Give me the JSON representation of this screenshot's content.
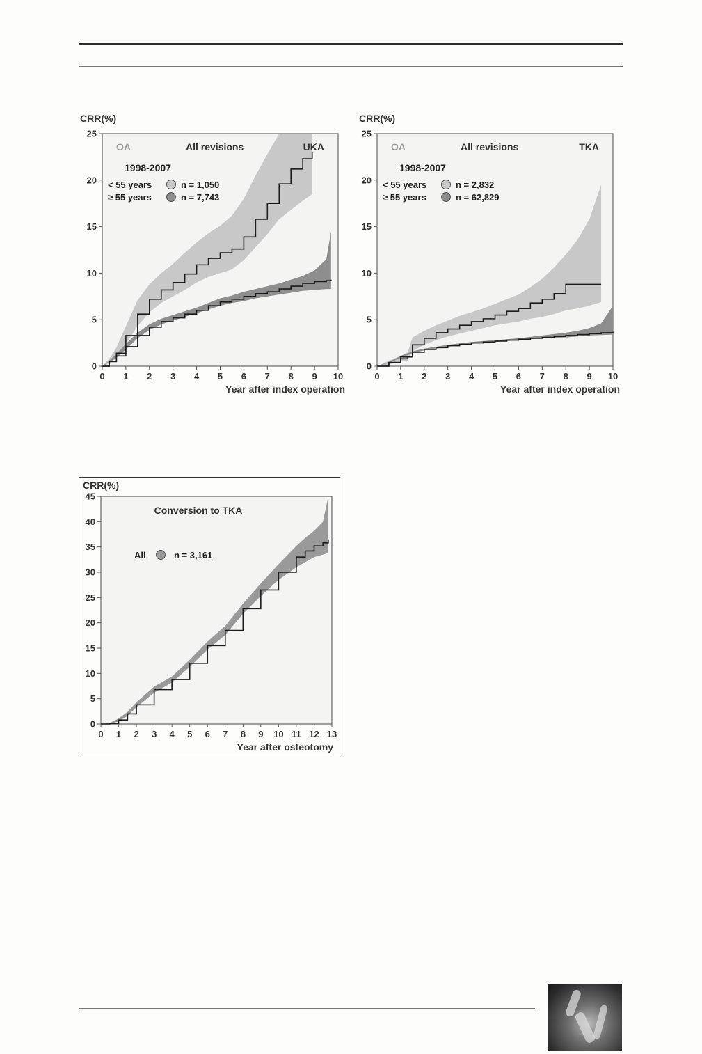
{
  "chart_data": [
    {
      "type": "line",
      "ylabel": "CRR(%)",
      "xlabel": "Year after index operation",
      "xlim": [
        0,
        10
      ],
      "ylim": [
        0,
        25
      ],
      "xticks": [
        0,
        1,
        2,
        3,
        4,
        5,
        6,
        7,
        8,
        9,
        10
      ],
      "yticks": [
        0,
        5,
        10,
        15,
        20,
        25
      ],
      "annotations": {
        "left": "OA",
        "center": "All revisions",
        "right": "UKA"
      },
      "period": "1998-2007",
      "legend_placement": "top-left",
      "series": [
        {
          "label": "< 55 years",
          "n": "n = 1,050",
          "color": "#c8c8c8",
          "x": [
            0,
            0.3,
            0.6,
            1.0,
            1.5,
            2.0,
            2.5,
            3.0,
            3.5,
            4.0,
            4.5,
            5.0,
            5.5,
            6.0,
            6.5,
            7.0,
            7.5,
            8.0,
            8.5,
            8.9
          ],
          "y": [
            0,
            0.5,
            1.4,
            3.3,
            5.6,
            7.2,
            8.2,
            9.0,
            9.9,
            10.9,
            11.6,
            12.2,
            12.6,
            13.9,
            15.8,
            17.5,
            19.6,
            21.2,
            22.3,
            23.0
          ],
          "ci_low": [
            0,
            0.3,
            0.9,
            2.4,
            4.3,
            5.8,
            6.8,
            7.5,
            8.2,
            9.0,
            9.6,
            10.0,
            10.4,
            11.4,
            12.8,
            14.2,
            15.8,
            16.8,
            17.8,
            18.5
          ],
          "ci_high": [
            0,
            0.8,
            2.0,
            4.3,
            7.1,
            8.8,
            10.0,
            11.0,
            12.2,
            13.3,
            14.3,
            15.1,
            16.2,
            18.0,
            20.5,
            22.8,
            25.0,
            25.0,
            25.0,
            25.0
          ]
        },
        {
          "label": "≥ 55 years",
          "n": "n = 7,743",
          "color": "#8e8e8e",
          "x": [
            0,
            0.3,
            0.6,
            1.0,
            1.5,
            2.0,
            2.5,
            3.0,
            3.5,
            4.0,
            4.5,
            5.0,
            5.5,
            6.0,
            6.5,
            7.0,
            7.5,
            8.0,
            8.5,
            9.0,
            9.5,
            9.7
          ],
          "y": [
            0,
            0.5,
            1.1,
            2.1,
            3.3,
            4.2,
            4.8,
            5.2,
            5.6,
            6.0,
            6.5,
            6.9,
            7.2,
            7.5,
            7.8,
            8.0,
            8.3,
            8.6,
            8.9,
            9.1,
            9.2,
            9.3
          ],
          "ci_low": [
            0,
            0.4,
            0.9,
            1.8,
            3.0,
            3.9,
            4.5,
            4.9,
            5.3,
            5.7,
            6.1,
            6.5,
            6.8,
            7.0,
            7.3,
            7.5,
            7.7,
            7.9,
            8.1,
            8.2,
            8.3,
            8.3
          ],
          "ci_high": [
            0,
            0.6,
            1.3,
            2.4,
            3.6,
            4.5,
            5.1,
            5.5,
            5.9,
            6.3,
            6.8,
            7.3,
            7.6,
            8.0,
            8.3,
            8.6,
            8.9,
            9.3,
            9.7,
            10.3,
            11.5,
            14.5
          ]
        }
      ]
    },
    {
      "type": "line",
      "ylabel": "CRR(%)",
      "xlabel": "Year after index operation",
      "xlim": [
        0,
        10
      ],
      "ylim": [
        0,
        25
      ],
      "xticks": [
        0,
        1,
        2,
        3,
        4,
        5,
        6,
        7,
        8,
        9,
        10
      ],
      "yticks": [
        0,
        5,
        10,
        15,
        20,
        25
      ],
      "annotations": {
        "left": "OA",
        "center": "All revisions",
        "right": "TKA"
      },
      "period": "1998-2007",
      "legend_placement": "top-left",
      "series": [
        {
          "label": "< 55 years",
          "n": "n = 2,832",
          "color": "#c8c8c8",
          "x": [
            0,
            0.5,
            1.0,
            1.3,
            1.5,
            2.0,
            2.5,
            3.0,
            3.5,
            4.0,
            4.5,
            5.0,
            5.5,
            6.0,
            6.5,
            7.0,
            7.5,
            8.0,
            8.5,
            9.0,
            9.5
          ],
          "y": [
            0,
            0.4,
            0.8,
            1.0,
            2.3,
            3.0,
            3.6,
            4.0,
            4.4,
            4.8,
            5.1,
            5.5,
            5.9,
            6.2,
            6.8,
            7.2,
            7.8,
            8.8,
            8.8,
            8.8,
            8.8
          ],
          "ci_low": [
            0,
            0.2,
            0.5,
            0.6,
            1.6,
            2.3,
            2.8,
            3.2,
            3.5,
            3.8,
            4.1,
            4.4,
            4.6,
            4.8,
            5.1,
            5.3,
            5.6,
            6.0,
            6.2,
            6.5,
            6.9
          ],
          "ci_high": [
            0,
            0.6,
            1.1,
            1.5,
            3.1,
            3.8,
            4.4,
            4.9,
            5.4,
            5.8,
            6.2,
            6.7,
            7.2,
            7.7,
            8.5,
            9.4,
            10.6,
            12.0,
            13.6,
            15.8,
            19.5
          ]
        },
        {
          "label": "≥ 55 years",
          "n": "n = 62,829",
          "color": "#8e8e8e",
          "x": [
            0,
            0.5,
            1.0,
            1.5,
            2.0,
            2.5,
            3.0,
            3.5,
            4.0,
            4.5,
            5.0,
            5.5,
            6.0,
            6.5,
            7.0,
            7.5,
            8.0,
            8.5,
            9.0,
            9.5,
            10.0
          ],
          "y": [
            0,
            0.4,
            1.0,
            1.5,
            1.8,
            2.0,
            2.2,
            2.35,
            2.5,
            2.6,
            2.7,
            2.8,
            2.9,
            3.0,
            3.1,
            3.2,
            3.3,
            3.4,
            3.5,
            3.6,
            3.7
          ],
          "ci_low": [
            0,
            0.35,
            0.9,
            1.4,
            1.7,
            1.9,
            2.1,
            2.25,
            2.4,
            2.5,
            2.6,
            2.7,
            2.8,
            2.9,
            3.0,
            3.05,
            3.1,
            3.2,
            3.3,
            3.35,
            3.4
          ],
          "ci_high": [
            0,
            0.45,
            1.1,
            1.6,
            1.9,
            2.1,
            2.3,
            2.45,
            2.6,
            2.7,
            2.8,
            2.9,
            3.0,
            3.15,
            3.3,
            3.45,
            3.6,
            3.8,
            4.1,
            4.6,
            6.5
          ]
        }
      ]
    },
    {
      "type": "line",
      "ylabel": "CRR(%)",
      "xlabel": "Year after osteotomy",
      "xlim": [
        0,
        13
      ],
      "ylim": [
        0,
        45
      ],
      "xticks": [
        0,
        1,
        2,
        3,
        4,
        5,
        6,
        7,
        8,
        9,
        10,
        11,
        12,
        13
      ],
      "yticks": [
        0,
        5,
        10,
        15,
        20,
        25,
        30,
        35,
        40,
        45
      ],
      "annotations": {
        "center": "Conversion to TKA"
      },
      "legend_placement": "upper-left",
      "series": [
        {
          "label": "All",
          "n": "n = 3,161",
          "color": "#9a9a9a",
          "x": [
            0,
            0.5,
            1.0,
            1.5,
            2.0,
            3.0,
            4.0,
            5.0,
            6.0,
            7.0,
            8.0,
            9.0,
            10.0,
            11.0,
            11.5,
            12.0,
            12.5,
            12.8
          ],
          "y": [
            0,
            0.1,
            0.8,
            2.0,
            3.8,
            6.8,
            8.8,
            12.0,
            15.5,
            18.5,
            22.8,
            26.5,
            30.0,
            33.0,
            34.2,
            35.2,
            35.8,
            36.5
          ],
          "ci_low": [
            0,
            0.05,
            0.5,
            1.6,
            3.3,
            6.2,
            8.2,
            11.3,
            14.7,
            17.6,
            21.8,
            25.3,
            28.5,
            31.0,
            32.0,
            33.0,
            33.5,
            33.8
          ],
          "ci_high": [
            0,
            0.2,
            1.1,
            2.4,
            4.3,
            7.4,
            9.4,
            12.7,
            16.3,
            19.4,
            23.8,
            27.8,
            31.6,
            35.2,
            36.8,
            38.2,
            40.0,
            45.0
          ]
        }
      ]
    }
  ]
}
